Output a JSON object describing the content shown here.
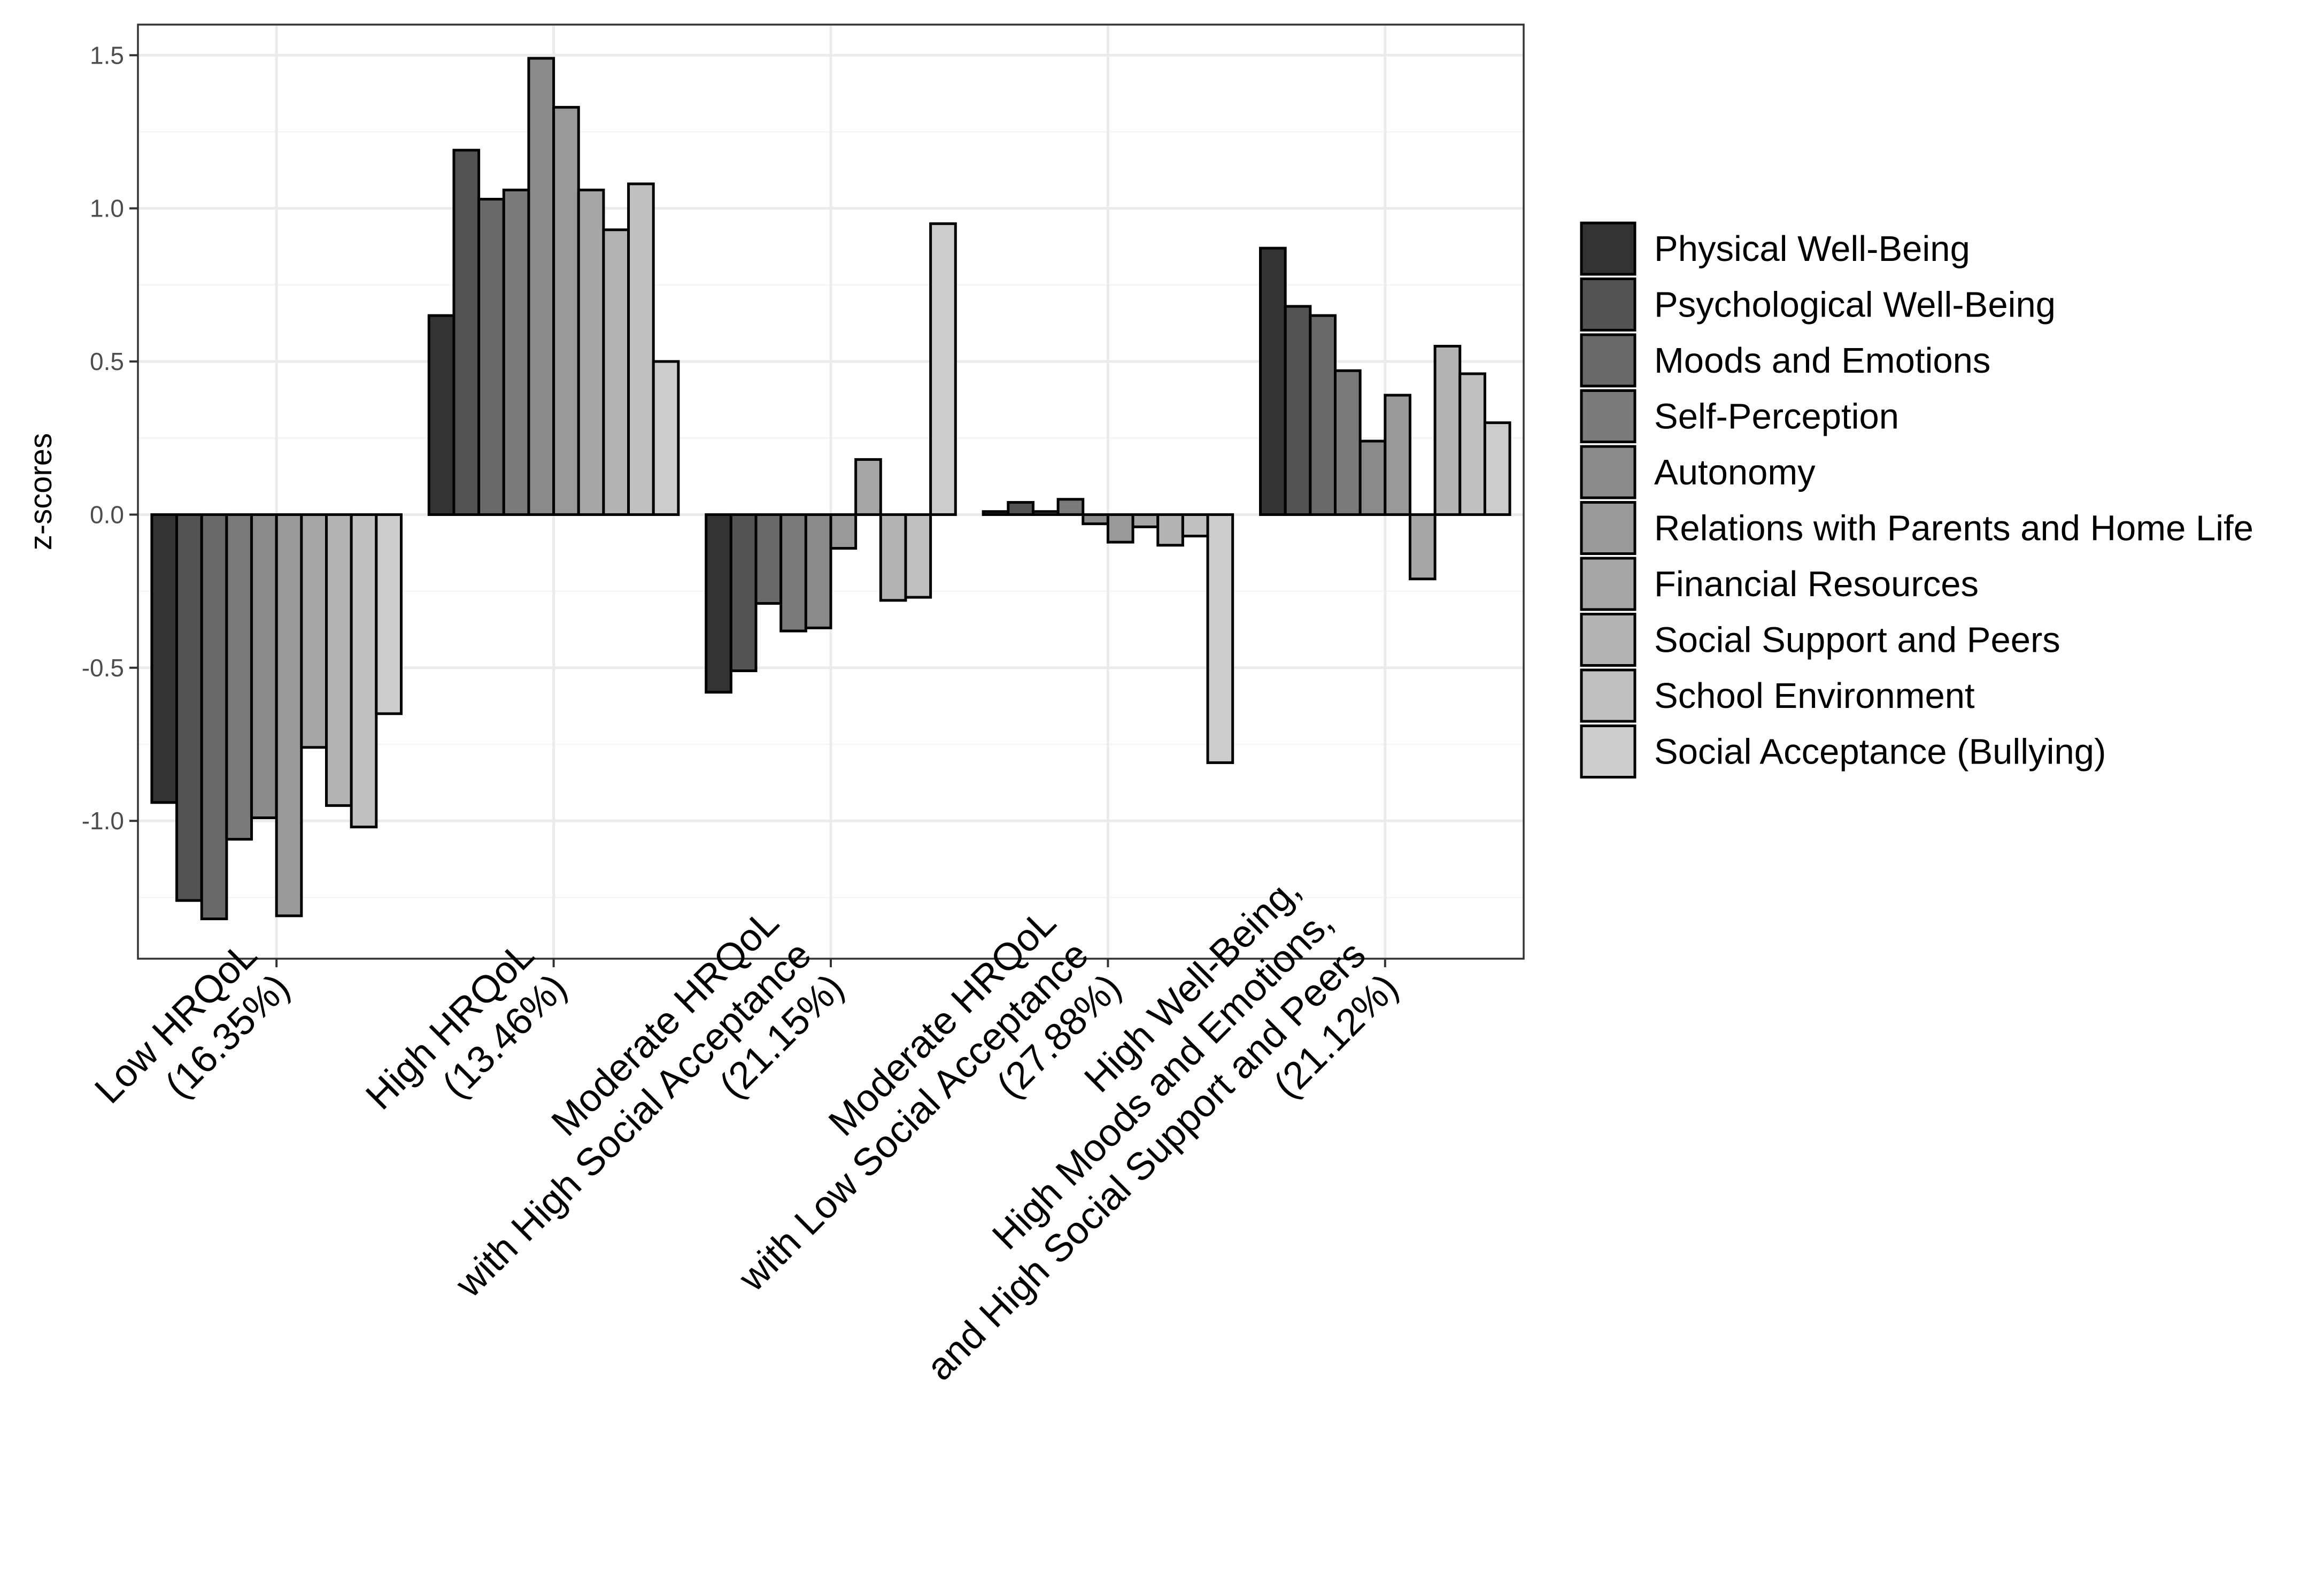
{
  "chart_data": {
    "type": "bar",
    "title": "",
    "xlabel": "",
    "ylabel": "z-scores",
    "ylim": [
      -1.45,
      1.6
    ],
    "yticks": [
      -1.0,
      -0.5,
      0.0,
      0.5,
      1.0,
      1.5
    ],
    "ytick_labels": [
      "-1.0",
      "-0.5",
      "0.0",
      "0.5",
      "1.0",
      "1.5"
    ],
    "grid": true,
    "legend_position": "right",
    "categories": [
      [
        "Low HRQoL",
        "(16.35%)"
      ],
      [
        "High HRQoL",
        "(13.46%)"
      ],
      [
        "Moderate HRQoL",
        "with High Social Acceptance",
        "(21.15%)"
      ],
      [
        "Moderate HRQoL",
        "with Low Social Acceptance",
        "(27.88%)"
      ],
      [
        "High Well-Being,",
        "High Moods and Emotions,",
        "and High Social Support and Peers",
        "(21.12%)"
      ]
    ],
    "series": [
      {
        "name": "Physical Well-Being",
        "color": "#333333",
        "values": [
          -0.94,
          0.65,
          -0.58,
          0.01,
          0.87
        ]
      },
      {
        "name": "Psychological Well-Being",
        "color": "#535353",
        "values": [
          -1.26,
          1.19,
          -0.51,
          0.04,
          0.68
        ]
      },
      {
        "name": "Moods and Emotions",
        "color": "#696969",
        "values": [
          -1.32,
          1.03,
          -0.29,
          0.01,
          0.65
        ]
      },
      {
        "name": "Self-Perception",
        "color": "#7a7a7a",
        "values": [
          -1.06,
          1.06,
          -0.38,
          0.05,
          0.47
        ]
      },
      {
        "name": "Autonomy",
        "color": "#8a8a8a",
        "values": [
          -0.99,
          1.49,
          -0.37,
          -0.03,
          0.24
        ]
      },
      {
        "name": "Relations with Parents and Home Life",
        "color": "#999999",
        "values": [
          -1.31,
          1.33,
          -0.11,
          -0.09,
          0.39
        ]
      },
      {
        "name": "Financial Resources",
        "color": "#a6a6a6",
        "values": [
          -0.76,
          1.06,
          0.18,
          -0.04,
          -0.21
        ]
      },
      {
        "name": "Social Support and Peers",
        "color": "#b3b3b3",
        "values": [
          -0.95,
          0.93,
          -0.28,
          -0.1,
          0.55
        ]
      },
      {
        "name": "School Environment",
        "color": "#c0c0c0",
        "values": [
          -1.02,
          1.08,
          -0.27,
          -0.07,
          0.46
        ]
      },
      {
        "name": "Social Acceptance (Bullying)",
        "color": "#cccccc",
        "values": [
          -0.65,
          0.5,
          0.95,
          -0.81,
          0.3
        ]
      }
    ]
  },
  "colors": {
    "panel_border": "#333333",
    "grid_major": "#ebebeb",
    "grid_minor": "#f5f5f5",
    "bar_stroke": "#000000"
  }
}
